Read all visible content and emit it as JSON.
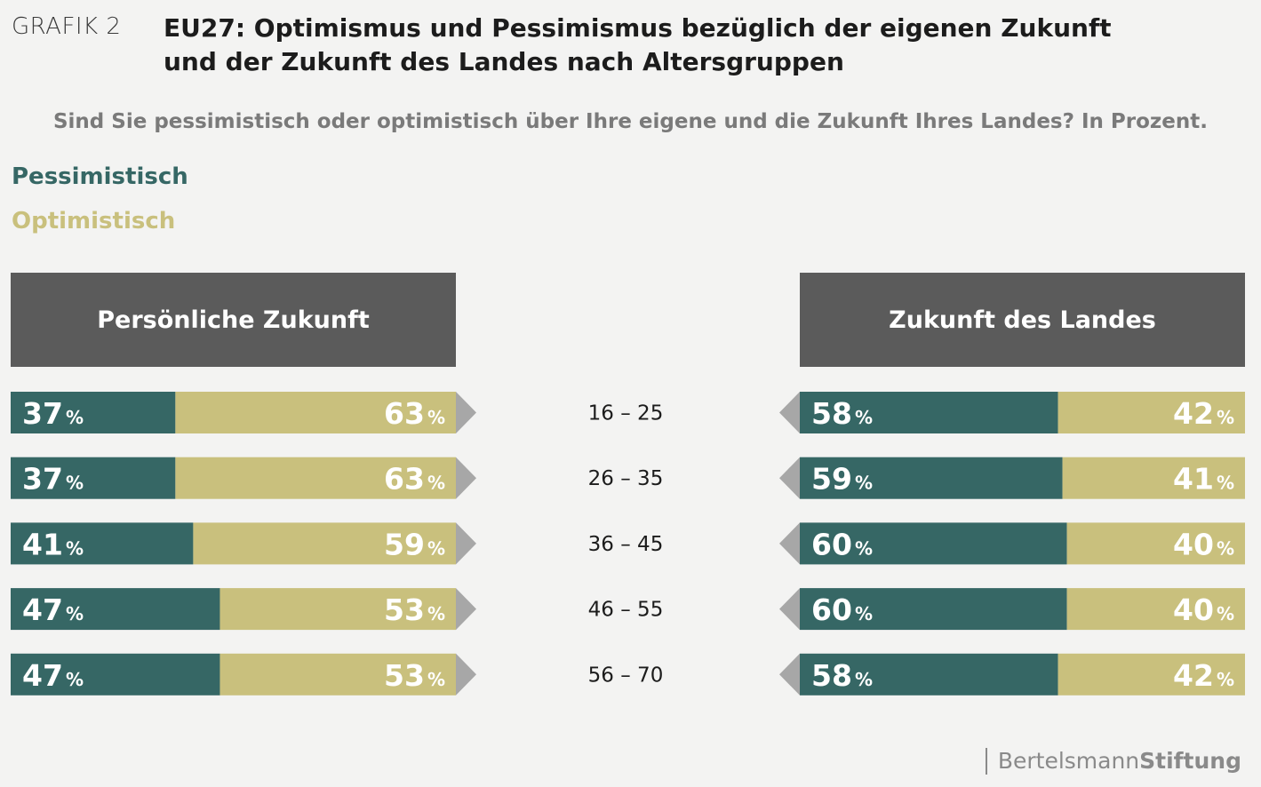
{
  "header": {
    "grafik": "GRAFIK 2",
    "title_line1": "EU27: Optimismus und Pessimismus bezüglich der eigenen Zukunft",
    "title_line2": "und der Zukunft des Landes nach Altersgruppen",
    "subtitle": "Sind Sie pessimistisch oder optimistisch über Ihre eigene und die Zukunft Ihres Landes? In Prozent."
  },
  "legend": {
    "pessimistic": {
      "label": "Pessimistisch",
      "color": "#366765"
    },
    "optimistic": {
      "label": "Optimistisch",
      "color": "#c9c07d"
    }
  },
  "panels": {
    "left_title": "Persönliche Zukunft",
    "right_title": "Zukunft des Landes"
  },
  "colors": {
    "header_bg": "#5b5b5b",
    "arrow": "#a7a7a7"
  },
  "chart_data": {
    "type": "bar",
    "stacked": true,
    "unit": "%",
    "categories": [
      "16 – 25",
      "26 – 35",
      "36 – 45",
      "46 – 55",
      "56 – 70"
    ],
    "panels": [
      {
        "name": "Persönliche Zukunft",
        "series": [
          {
            "name": "Pessimistisch",
            "values": [
              37,
              37,
              41,
              47,
              47
            ]
          },
          {
            "name": "Optimistisch",
            "values": [
              63,
              63,
              59,
              53,
              53
            ]
          }
        ]
      },
      {
        "name": "Zukunft des Landes",
        "series": [
          {
            "name": "Pessimistisch",
            "values": [
              58,
              59,
              60,
              60,
              58
            ]
          },
          {
            "name": "Optimistisch",
            "values": [
              42,
              41,
              40,
              40,
              42
            ]
          }
        ]
      }
    ]
  },
  "footer": {
    "brand_regular": "Bertelsmann",
    "brand_bold": "Stiftung"
  }
}
